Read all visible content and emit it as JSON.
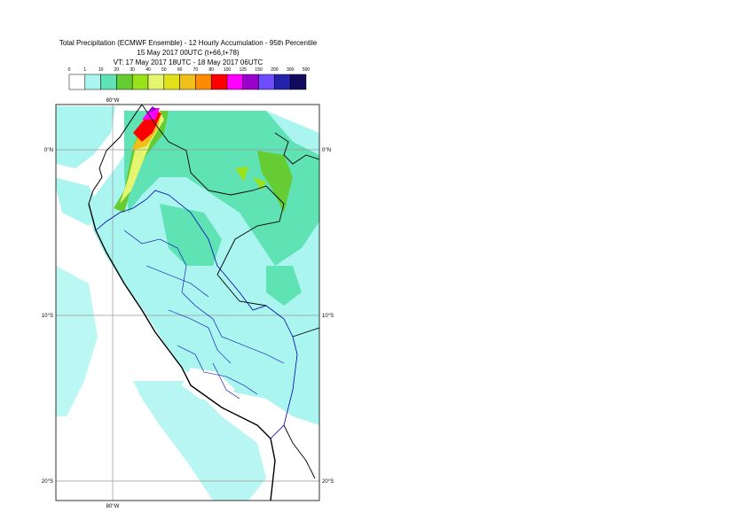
{
  "header": {
    "title": "Total Precipitation (ECMWF Ensemble) - 12 Hourly Accumulation - 95th Percentile",
    "run": "15 May 2017 00UTC (t+66,t+78)",
    "valid": "VT: 17 May 2017 18UTC - 18 May 2017 06UTC"
  },
  "legend": {
    "ticks": [
      "0",
      "1",
      "10",
      "20",
      "30",
      "40",
      "50",
      "60",
      "70",
      "80",
      "100",
      "125",
      "150",
      "200",
      "300",
      "500"
    ],
    "colors": [
      "#ffffff",
      "#aaf5f0",
      "#5fe3b5",
      "#66cc33",
      "#99e11a",
      "#e6f570",
      "#e1e11a",
      "#f0c01a",
      "#ff8c00",
      "#ff0000",
      "#ff00ff",
      "#9900cc",
      "#6d4cff",
      "#2222aa",
      "#120a5c"
    ]
  },
  "map": {
    "lon_label_top": "80°W",
    "lon_label_bottom": "80°W",
    "lat_labels": [
      "0°N",
      "10°S",
      "20°S"
    ]
  }
}
